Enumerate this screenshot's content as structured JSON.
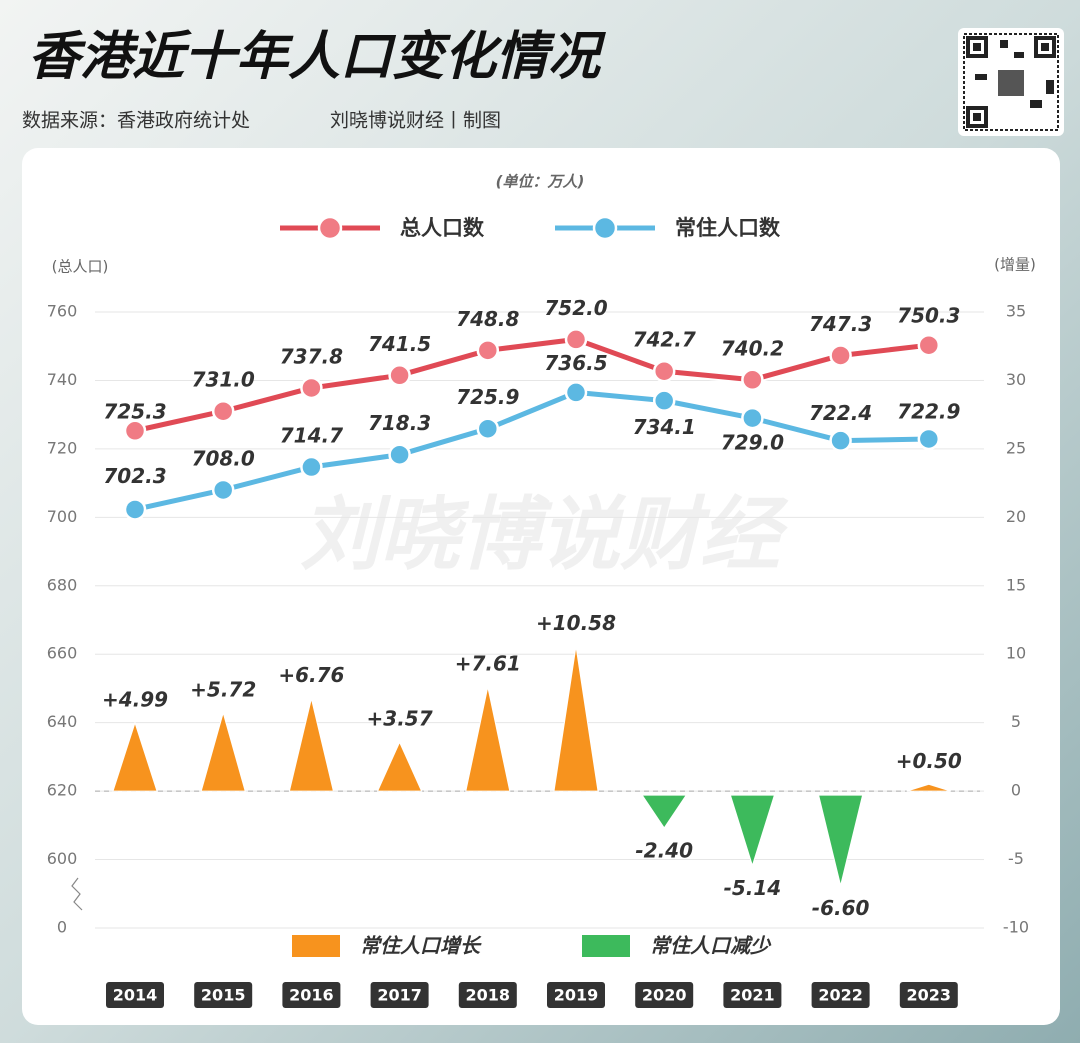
{
  "header": {
    "title": "香港近十年人口变化情况",
    "source": "数据来源：香港政府统计处",
    "credit": "刘晓博说财经丨制图"
  },
  "chart_data": {
    "type": "line",
    "unit": "(单位：万人)",
    "ylabel": "(总人口)",
    "y2label": "(增量)",
    "watermark": "刘晓博说财经",
    "categories": [
      "2014",
      "2015",
      "2016",
      "2017",
      "2018",
      "2019",
      "2020",
      "2021",
      "2022",
      "2023"
    ],
    "ylim": [
      580,
      760
    ],
    "yticks": [
      0,
      600,
      620,
      640,
      660,
      680,
      700,
      720,
      740,
      760
    ],
    "axis_break": true,
    "y2lim": [
      -10,
      35
    ],
    "y2ticks": [
      -10,
      -5,
      0,
      5,
      10,
      15,
      20,
      25,
      30,
      35
    ],
    "grid": true,
    "series": [
      {
        "name": "总人口数",
        "color": "#e04a55",
        "marker_color": "#f07b84",
        "values": [
          725.3,
          731.0,
          737.8,
          741.5,
          748.8,
          752.0,
          742.7,
          740.2,
          747.3,
          750.3
        ],
        "value_labels": [
          "725.3",
          "731.0",
          "737.8",
          "741.5",
          "748.8",
          "752.0",
          "742.7",
          "740.2",
          "747.3",
          "750.3"
        ]
      },
      {
        "name": "常住人口数",
        "color": "#5cb8e2",
        "marker_color": "#5cb8e2",
        "values": [
          702.3,
          708.0,
          714.7,
          718.3,
          725.9,
          736.5,
          734.1,
          729.0,
          722.4,
          722.9
        ],
        "value_labels": [
          "702.3",
          "708.0",
          "714.7",
          "718.3",
          "725.9",
          "736.5",
          "734.1",
          "729.0",
          "722.4",
          "722.9"
        ]
      },
      {
        "name": "常住人口增长",
        "type": "triangle",
        "axis": "y2",
        "color": "#f7931e",
        "values": [
          4.99,
          5.72,
          6.76,
          3.57,
          7.61,
          10.58,
          null,
          null,
          null,
          0.5
        ],
        "value_labels": [
          "+4.99",
          "+5.72",
          "+6.76",
          "+3.57",
          "+7.61",
          "+10.58",
          null,
          null,
          null,
          "+0.50"
        ]
      },
      {
        "name": "常住人口减少",
        "type": "triangle",
        "axis": "y2",
        "color": "#3dba5c",
        "values": [
          null,
          null,
          null,
          null,
          null,
          null,
          -2.4,
          -5.14,
          -6.6,
          null
        ],
        "value_labels": [
          null,
          null,
          null,
          null,
          null,
          null,
          "-2.40",
          "-5.14",
          "-6.60",
          null
        ]
      }
    ]
  }
}
